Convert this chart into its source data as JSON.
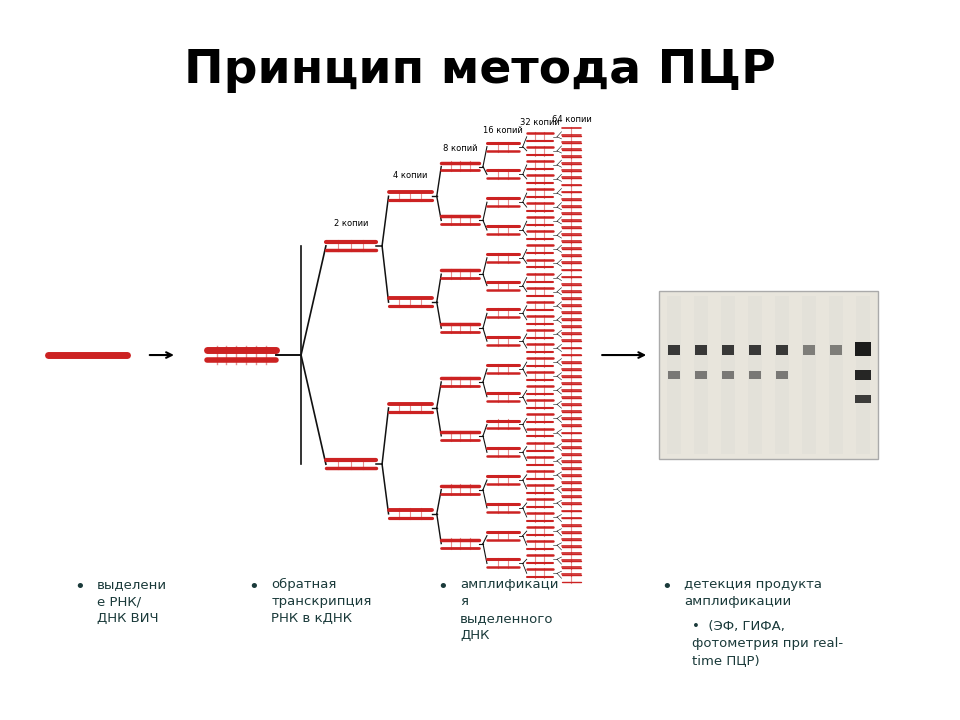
{
  "title": "Принцип метода ПЦР",
  "title_fontsize": 34,
  "title_fontweight": "bold",
  "bg_color": "#ffffff",
  "dna_color": "#cc2222",
  "line_color": "#111111",
  "text_color": "#1a3a3a",
  "bullet_texts": [
    "выделени\nе РНК/\nДНК ВИЧ",
    "обратная\nтранскрипция\nРНК в кДНК",
    "амплификаци\nя\nвыделенного\nДНК",
    "детекция продукта\nамплификации\n•  (ЭФ, ГИФА,\nфотометрия при real-\ntime ПЦР)"
  ]
}
